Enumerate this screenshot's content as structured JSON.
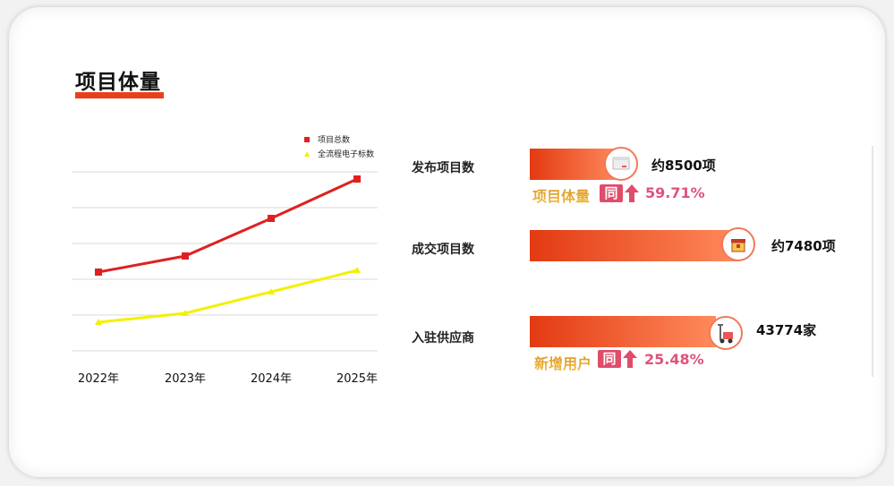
{
  "section": {
    "title": "项目体量"
  },
  "chart_data": {
    "type": "line",
    "categories": [
      "2022年",
      "2023年",
      "2024年",
      "2025年"
    ],
    "series": [
      {
        "name": "项目总数",
        "values": [
          2.2,
          2.65,
          3.7,
          4.8
        ],
        "color": "#e02020",
        "marker": "square"
      },
      {
        "name": "全流程电子标数",
        "values": [
          0.8,
          1.05,
          1.65,
          2.25
        ],
        "color": "#f4f000",
        "marker": "triangle"
      }
    ],
    "ylim": [
      0,
      5
    ],
    "yticks_shown": false,
    "grid": true,
    "legend_position": "top-right"
  },
  "metrics": [
    {
      "label": "发布项目数",
      "value": "约8500项",
      "icon": "browser-window-icon",
      "fill": 0.214
    },
    {
      "label": "成交项目数",
      "value": "约7480项",
      "icon": "treasure-chest-icon",
      "fill": 0.96
    },
    {
      "label": "入驻供应商",
      "value": "43774家",
      "icon": "hand-truck-icon",
      "fill": 0.84
    }
  ],
  "growth": [
    {
      "text": "项目体量",
      "tag": "同",
      "pct": "59.71%"
    },
    {
      "text": "新增用户",
      "tag": "同",
      "pct": "25.48%"
    }
  ],
  "colors": {
    "accent": "#e8401a",
    "bar_start": "#e33a12",
    "bar_end": "#ff8a5c",
    "pct": "#e0527a"
  }
}
